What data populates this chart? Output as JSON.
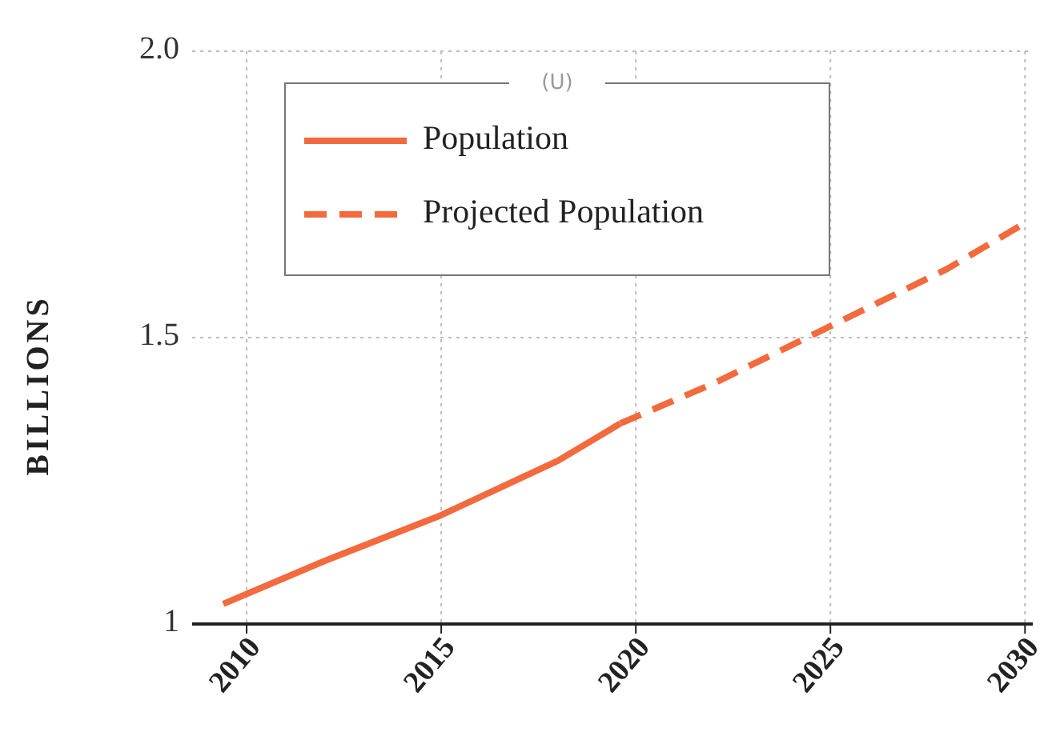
{
  "chart_data": {
    "type": "line",
    "ylabel": "BILLIONS",
    "legend_title": "(U)",
    "xlim": [
      2008.6,
      2030.2
    ],
    "xticks": [
      2010,
      2015,
      2020,
      2025,
      2030
    ],
    "ylim": [
      1,
      2
    ],
    "yticks": [
      1,
      1.5,
      {
        "value": 2,
        "label": "2.0"
      }
    ],
    "grid": true,
    "legend": "top left",
    "series": [
      {
        "name": "Population",
        "color": "#f26a3d",
        "line_style": "solid",
        "x": [
          2009.4,
          2012,
          2015,
          2018,
          2019.6
        ],
        "values": [
          1.035,
          1.11,
          1.19,
          1.285,
          1.35
        ]
      },
      {
        "name": "Projected Population",
        "color": "#f26a3d",
        "line_style": "dashed",
        "x": [
          2019.6,
          2022,
          2025,
          2028,
          2030
        ],
        "values": [
          1.35,
          1.42,
          1.52,
          1.62,
          1.7
        ]
      }
    ]
  }
}
